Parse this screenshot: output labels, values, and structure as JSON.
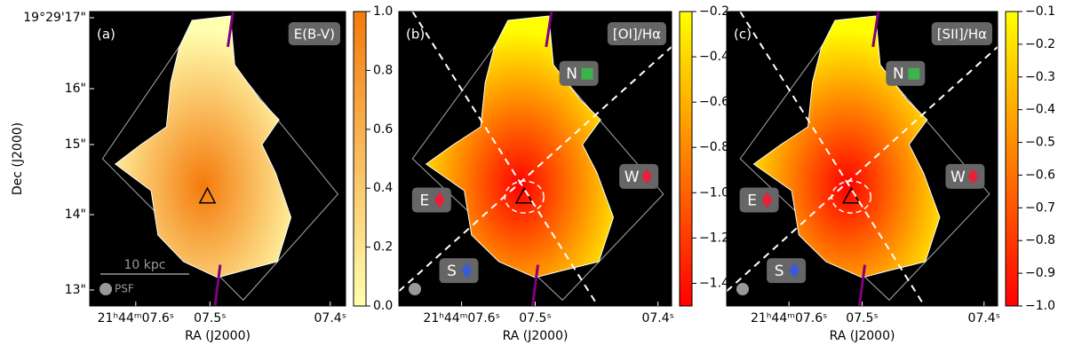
{
  "chart_data": [
    {
      "type": "map",
      "label": "(a)",
      "title": "E(B-V)",
      "xlabel": "RA (J2000)",
      "xticks": [
        "21ʰ44ᵐ07.6ˢ",
        "07.5ˢ",
        "07.4ˢ"
      ],
      "ylabel": "Dec (J2000)",
      "yticks": [
        "19°29'17\"",
        "16\"",
        "15\"",
        "14\"",
        "13\""
      ],
      "scale_bar": "10 kpc",
      "psf": "PSF",
      "colorbar": {
        "lim": [
          0,
          1
        ],
        "colors": [
          "#ffffb0",
          "#f47a0c"
        ],
        "ticks": [
          {
            "value": 0,
            "label": "0.0"
          },
          0.2,
          0.4,
          0.6,
          0.8,
          {
            "value": 1,
            "label": "1.0"
          }
        ]
      }
    },
    {
      "type": "map",
      "label": "(b)",
      "title": "[OI]/Hα",
      "xlabel": "RA (J2000)",
      "xticks": [
        "21ʰ44ᵐ07.6ˢ",
        "07.5ˢ",
        "07.4ˢ"
      ],
      "regions": [
        {
          "label": "N",
          "color": "#3cb44b",
          "marker": "square"
        },
        {
          "label": "W",
          "color": "#e8203a",
          "marker": "diamond"
        },
        {
          "label": "E",
          "color": "#e8203a",
          "marker": "diamond"
        },
        {
          "label": "S",
          "color": "#3a5bd9",
          "marker": "diamond"
        }
      ],
      "colorbar": {
        "lim": [
          -1.5,
          -0.2
        ],
        "colors": [
          "#ff0000",
          "#ffff00"
        ],
        "ticks": [
          {
            "value": -0.2,
            "label": "−0.2"
          },
          {
            "value": -0.4,
            "label": "−0.4"
          },
          {
            "value": -0.6,
            "label": "−0.6"
          },
          {
            "value": -0.8,
            "label": "−0.8"
          },
          {
            "value": -1.0,
            "label": "−1.0"
          },
          {
            "value": -1.2,
            "label": "−1.2"
          },
          {
            "value": -1.4,
            "label": "−1.4"
          }
        ]
      }
    },
    {
      "type": "map",
      "label": "(c)",
      "title": "[SII]/Hα",
      "xlabel": "RA (J2000)",
      "xticks": [
        "21ʰ44ᵐ07.6ˢ",
        "07.5ˢ",
        "07.4ˢ"
      ],
      "regions": [
        {
          "label": "N",
          "color": "#3cb44b",
          "marker": "square"
        },
        {
          "label": "W",
          "color": "#e8203a",
          "marker": "diamond"
        },
        {
          "label": "E",
          "color": "#e8203a",
          "marker": "diamond"
        },
        {
          "label": "S",
          "color": "#3a5bd9",
          "marker": "diamond"
        }
      ],
      "colorbar": {
        "lim": [
          -1.0,
          -0.1
        ],
        "colors": [
          "#ff0000",
          "#ffff00"
        ],
        "ticks": [
          {
            "value": -0.1,
            "label": "−0.1"
          },
          {
            "value": -0.2,
            "label": "−0.2"
          },
          {
            "value": -0.3,
            "label": "−0.3"
          },
          {
            "value": -0.4,
            "label": "−0.4"
          },
          {
            "value": -0.5,
            "label": "−0.5"
          },
          {
            "value": -0.6,
            "label": "−0.6"
          },
          {
            "value": -0.7,
            "label": "−0.7"
          },
          {
            "value": -0.8,
            "label": "−0.8"
          },
          {
            "value": -0.9,
            "label": "−0.9"
          },
          {
            "value": -1.0,
            "label": "−1.0"
          }
        ]
      }
    }
  ]
}
